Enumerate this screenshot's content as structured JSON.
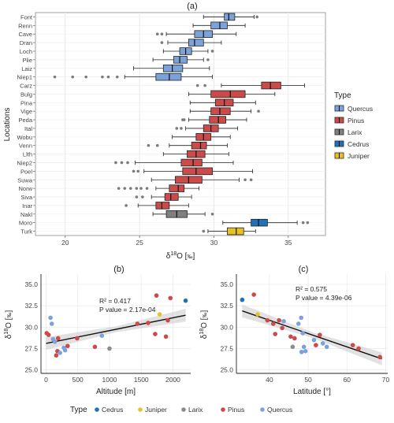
{
  "panel_labels": {
    "a": "(a)",
    "b": "(b)",
    "c": "(c)"
  },
  "chart_data": [
    {
      "type": "boxplot",
      "xlabel_main": "δ",
      "xlabel_sup": "18",
      "xlabel_rest": "O [",
      "xlabel_unit": "‰",
      "xlabel_end": "]",
      "ylabel": "Locations",
      "xlim": [
        18,
        37.5
      ],
      "xticks": [
        20,
        25,
        30,
        35
      ],
      "grid": true,
      "legend": {
        "title": "Type",
        "position": "right",
        "items": [
          "Quercus",
          "Pinus",
          "Larix",
          "Cedrus",
          "Juniper"
        ]
      },
      "colors": {
        "Quercus": "#7BA3DA",
        "Pinus": "#CB4A4A",
        "Larix": "#808080",
        "Cedrus": "#1F72B8",
        "Juniper": "#E8BF24"
      },
      "boxes": [
        {
          "loc": "Font",
          "type": "Quercus",
          "wlo": 29.3,
          "q1": 30.7,
          "med": 31.0,
          "q3": 31.4,
          "whi": 32.7,
          "out": [
            32.9
          ]
        },
        {
          "loc": "Renn",
          "type": "Quercus",
          "wlo": 28.6,
          "q1": 29.8,
          "med": 30.4,
          "q3": 30.9,
          "whi": 32.1,
          "out": []
        },
        {
          "loc": "Cave",
          "type": "Quercus",
          "wlo": 26.8,
          "q1": 28.7,
          "med": 29.3,
          "q3": 29.9,
          "whi": 31.5,
          "out": [
            26.2,
            26.5
          ]
        },
        {
          "loc": "Dran",
          "type": "Quercus",
          "wlo": 26.9,
          "q1": 28.3,
          "med": 28.7,
          "q3": 29.3,
          "whi": 30.5,
          "out": [
            26.5
          ]
        },
        {
          "loc": "Loch",
          "type": "Quercus",
          "wlo": 26.6,
          "q1": 27.7,
          "med": 28.1,
          "q3": 28.5,
          "whi": 29.6,
          "out": [
            29.9
          ]
        },
        {
          "loc": "Plie",
          "type": "Quercus",
          "wlo": 25.9,
          "q1": 27.3,
          "med": 27.7,
          "q3": 28.2,
          "whi": 29.3,
          "out": [
            29.6
          ]
        },
        {
          "loc": "Laiz",
          "type": "Quercus",
          "wlo": 24.6,
          "q1": 26.6,
          "med": 27.2,
          "q3": 27.9,
          "whi": 29.7,
          "out": []
        },
        {
          "loc": "Niep1",
          "type": "Quercus",
          "wlo": 24.0,
          "q1": 26.1,
          "med": 27.0,
          "q3": 27.8,
          "whi": 29.9,
          "out": [
            19.3,
            20.5,
            21.4,
            22.5,
            22.9,
            23.5
          ]
        },
        {
          "loc": "Carz",
          "type": "Pinus",
          "wlo": 30.5,
          "q1": 33.2,
          "med": 33.8,
          "q3": 34.5,
          "whi": 36.1,
          "out": [
            28.9,
            29.4
          ]
        },
        {
          "loc": "Bulg",
          "type": "Pinus",
          "wlo": 28.3,
          "q1": 29.8,
          "med": 31.1,
          "q3": 32.1,
          "whi": 34.1,
          "out": []
        },
        {
          "loc": "Pina",
          "type": "Pinus",
          "wlo": 28.4,
          "q1": 30.1,
          "med": 30.7,
          "q3": 31.3,
          "whi": 32.8,
          "out": []
        },
        {
          "loc": "Vige",
          "type": "Pinus",
          "wlo": 28.4,
          "q1": 29.8,
          "med": 30.4,
          "q3": 31.1,
          "whi": 32.5,
          "out": [
            33.0
          ]
        },
        {
          "loc": "Peda",
          "type": "Pinus",
          "wlo": 28.3,
          "q1": 29.7,
          "med": 30.3,
          "q3": 30.8,
          "whi": 32.2,
          "out": [
            27.9,
            28.0
          ]
        },
        {
          "loc": "Ital",
          "type": "Pinus",
          "wlo": 28.1,
          "q1": 29.3,
          "med": 29.8,
          "q3": 30.3,
          "whi": 31.6,
          "out": [
            27.5,
            27.8
          ]
        },
        {
          "loc": "Wobu",
          "type": "Pinus",
          "wlo": 27.2,
          "q1": 28.8,
          "med": 29.3,
          "q3": 29.8,
          "whi": 31.1,
          "out": []
        },
        {
          "loc": "Venn",
          "type": "Pinus",
          "wlo": 27.0,
          "q1": 28.5,
          "med": 29.1,
          "q3": 29.5,
          "whi": 30.9,
          "out": [
            25.6,
            26.2
          ]
        },
        {
          "loc": "Llth",
          "type": "Pinus",
          "wlo": 26.6,
          "q1": 28.2,
          "med": 28.8,
          "q3": 29.4,
          "whi": 31.0,
          "out": []
        },
        {
          "loc": "Niep2",
          "type": "Pinus",
          "wlo": 24.7,
          "q1": 27.8,
          "med": 28.6,
          "q3": 29.2,
          "whi": 31.3,
          "out": [
            23.4,
            23.8,
            24.2
          ]
        },
        {
          "loc": "Poel",
          "type": "Pinus",
          "wlo": 25.3,
          "q1": 27.9,
          "med": 28.8,
          "q3": 29.9,
          "whi": 32.6,
          "out": [
            24.6,
            24.9
          ]
        },
        {
          "loc": "Suwa",
          "type": "Pinus",
          "wlo": 25.8,
          "q1": 27.4,
          "med": 28.3,
          "q3": 29.2,
          "whi": 31.7,
          "out": [
            32.1,
            32.5
          ]
        },
        {
          "loc": "Norw",
          "type": "Pinus",
          "wlo": 26.1,
          "q1": 27.0,
          "med": 27.6,
          "q3": 28.0,
          "whi": 29.0,
          "out": [
            23.6,
            24.0,
            24.4,
            24.8,
            25.1,
            25.5
          ]
        },
        {
          "loc": "Siva",
          "type": "Pinus",
          "wlo": 25.8,
          "q1": 26.7,
          "med": 27.1,
          "q3": 27.6,
          "whi": 28.5,
          "out": [
            24.8,
            25.2
          ]
        },
        {
          "loc": "Inar",
          "type": "Pinus",
          "wlo": 24.9,
          "q1": 26.1,
          "med": 26.5,
          "q3": 27.0,
          "whi": 28.3,
          "out": [
            24.1
          ]
        },
        {
          "loc": "Nakl",
          "type": "Larix",
          "wlo": 25.9,
          "q1": 26.8,
          "med": 27.5,
          "q3": 28.2,
          "whi": 29.4,
          "out": [
            29.9
          ]
        },
        {
          "loc": "Moro",
          "type": "Cedrus",
          "wlo": 30.6,
          "q1": 32.5,
          "med": 33.0,
          "q3": 33.6,
          "whi": 35.6,
          "out": [
            36.0,
            36.3
          ]
        },
        {
          "loc": "Turk",
          "type": "Juniper",
          "wlo": 29.6,
          "q1": 30.9,
          "med": 31.5,
          "q3": 32.0,
          "whi": 32.8,
          "out": [
            29.3
          ]
        }
      ]
    },
    {
      "type": "scatter",
      "xlabel": "Altitude [m]",
      "ylabel_main": "δ",
      "ylabel_sup": "18",
      "ylabel_rest": "O [",
      "ylabel_unit": "‰",
      "ylabel_end": "]",
      "xlim": [
        -80,
        2280
      ],
      "ylim": [
        24.6,
        36.2
      ],
      "xticks": [
        0,
        500,
        1000,
        1500,
        2000
      ],
      "yticks": [
        "25.0",
        "27.5",
        "30.0",
        "32.5",
        "35.0"
      ],
      "r2": "R² = 0.417",
      "pvalue": "P value = 2.17e-04",
      "fit": {
        "x0": 0,
        "y0": 28.1,
        "x1": 2200,
        "y1": 31.4
      },
      "points": [
        {
          "x": 10,
          "y": 29.3,
          "t": "Pinus"
        },
        {
          "x": 40,
          "y": 29.1,
          "t": "Pinus"
        },
        {
          "x": 70,
          "y": 31.1,
          "t": "Quercus"
        },
        {
          "x": 90,
          "y": 30.4,
          "t": "Quercus"
        },
        {
          "x": 110,
          "y": 28.6,
          "t": "Quercus"
        },
        {
          "x": 140,
          "y": 28.3,
          "t": "Quercus"
        },
        {
          "x": 160,
          "y": 26.7,
          "t": "Pinus"
        },
        {
          "x": 180,
          "y": 27.2,
          "t": "Pinus"
        },
        {
          "x": 190,
          "y": 28.7,
          "t": "Pinus"
        },
        {
          "x": 220,
          "y": 27.0,
          "t": "Quercus"
        },
        {
          "x": 280,
          "y": 27.6,
          "t": "Quercus"
        },
        {
          "x": 300,
          "y": 27.3,
          "t": "Quercus"
        },
        {
          "x": 340,
          "y": 27.8,
          "t": "Pinus"
        },
        {
          "x": 490,
          "y": 28.7,
          "t": "Pinus"
        },
        {
          "x": 770,
          "y": 27.7,
          "t": "Pinus"
        },
        {
          "x": 880,
          "y": 29.0,
          "t": "Quercus"
        },
        {
          "x": 1000,
          "y": 27.5,
          "t": "Larix"
        },
        {
          "x": 1440,
          "y": 30.4,
          "t": "Pinus"
        },
        {
          "x": 1610,
          "y": 30.5,
          "t": "Pinus"
        },
        {
          "x": 1720,
          "y": 29.2,
          "t": "Pinus"
        },
        {
          "x": 1740,
          "y": 33.7,
          "t": "Pinus"
        },
        {
          "x": 1790,
          "y": 31.5,
          "t": "Juniper"
        },
        {
          "x": 1890,
          "y": 28.9,
          "t": "Pinus"
        },
        {
          "x": 1920,
          "y": 30.8,
          "t": "Pinus"
        },
        {
          "x": 1960,
          "y": 33.4,
          "t": "Pinus"
        },
        {
          "x": 2200,
          "y": 33.1,
          "t": "Cedrus"
        }
      ]
    },
    {
      "type": "scatter",
      "xlabel": "Latitude [°]",
      "ylabel_main": "δ",
      "ylabel_sup": "18",
      "ylabel_rest": "O [",
      "ylabel_unit": "‰",
      "ylabel_end": "]",
      "xlim": [
        31.5,
        70.5
      ],
      "ylim": [
        24.6,
        36.2
      ],
      "xticks": [
        40,
        50,
        60,
        70
      ],
      "yticks": [
        "25.0",
        "27.5",
        "30.0",
        "32.5",
        "35.0"
      ],
      "r2": "R² = 0.575",
      "pvalue": "P value = 4.39e-06",
      "fit": {
        "x0": 33,
        "y0": 31.9,
        "x1": 69,
        "y1": 26.3
      },
      "points": [
        {
          "x": 33,
          "y": 33.2,
          "t": "Cedrus"
        },
        {
          "x": 36,
          "y": 33.8,
          "t": "Pinus"
        },
        {
          "x": 37,
          "y": 31.5,
          "t": "Juniper"
        },
        {
          "x": 39.5,
          "y": 30.8,
          "t": "Pinus"
        },
        {
          "x": 41,
          "y": 30.4,
          "t": "Pinus"
        },
        {
          "x": 41.5,
          "y": 29.2,
          "t": "Pinus"
        },
        {
          "x": 42.5,
          "y": 30.8,
          "t": "Pinus"
        },
        {
          "x": 43.3,
          "y": 29.9,
          "t": "Pinus"
        },
        {
          "x": 43.7,
          "y": 30.7,
          "t": "Quercus"
        },
        {
          "x": 45.5,
          "y": 28.9,
          "t": "Pinus"
        },
        {
          "x": 46,
          "y": 27.7,
          "t": "Larix"
        },
        {
          "x": 46.5,
          "y": 28.7,
          "t": "Pinus"
        },
        {
          "x": 47.5,
          "y": 30.4,
          "t": "Quercus"
        },
        {
          "x": 48.2,
          "y": 31.1,
          "t": "Quercus"
        },
        {
          "x": 48.6,
          "y": 29.3,
          "t": "Quercus"
        },
        {
          "x": 48.9,
          "y": 27.7,
          "t": "Quercus"
        },
        {
          "x": 48.3,
          "y": 27.1,
          "t": "Quercus"
        },
        {
          "x": 49.3,
          "y": 27.2,
          "t": "Quercus"
        },
        {
          "x": 51.5,
          "y": 28.5,
          "t": "Quercus"
        },
        {
          "x": 52,
          "y": 27.9,
          "t": "Pinus"
        },
        {
          "x": 53,
          "y": 29.1,
          "t": "Pinus"
        },
        {
          "x": 53.8,
          "y": 28.1,
          "t": "Quercus"
        },
        {
          "x": 54.8,
          "y": 27.7,
          "t": "Quercus"
        },
        {
          "x": 61.5,
          "y": 27.9,
          "t": "Pinus"
        },
        {
          "x": 63,
          "y": 27.5,
          "t": "Pinus"
        },
        {
          "x": 68.5,
          "y": 26.5,
          "t": "Pinus"
        }
      ]
    }
  ],
  "bottom_legend": {
    "title": "Type",
    "items": [
      "Cedrus",
      "Juniper",
      "Larix",
      "Pinus",
      "Quercus"
    ]
  }
}
